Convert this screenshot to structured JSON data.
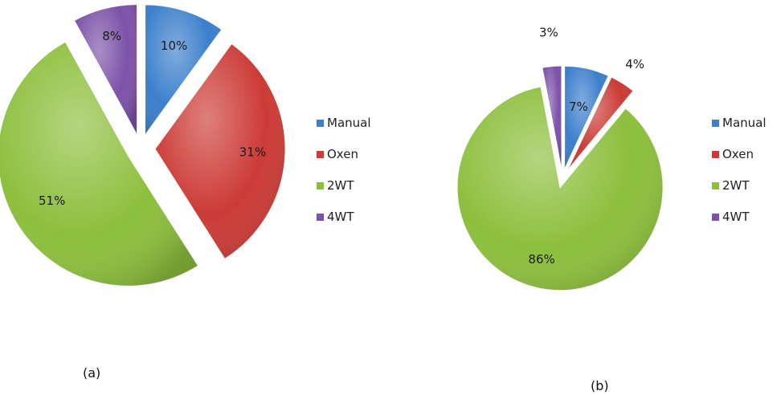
{
  "chart_data": [
    {
      "type": "pie",
      "panel_label": "(a)",
      "categories": [
        "Manual",
        "Oxen",
        "2WT",
        "4WT"
      ],
      "values": [
        10,
        31,
        51,
        8
      ],
      "value_labels": [
        "10%",
        "31%",
        "51%",
        "8%"
      ],
      "colors": [
        "#3c7fcc",
        "#cc3b36",
        "#8cbf3c",
        "#7c52a8"
      ],
      "exploded": true,
      "legend": {
        "position": "right",
        "entries": [
          "Manual",
          "Oxen",
          "2WT",
          "4WT"
        ]
      }
    },
    {
      "type": "pie",
      "panel_label": "(b)",
      "categories": [
        "Manual",
        "Oxen",
        "2WT",
        "4WT"
      ],
      "values": [
        7,
        4,
        86,
        3
      ],
      "value_labels": [
        "7%",
        "4%",
        "86%",
        "3%"
      ],
      "colors": [
        "#3c7fcc",
        "#cc3b36",
        "#8cbf3c",
        "#7c52a8"
      ],
      "exploded": true,
      "legend": {
        "position": "right",
        "entries": [
          "Manual",
          "Oxen",
          "2WT",
          "4WT"
        ]
      }
    }
  ]
}
